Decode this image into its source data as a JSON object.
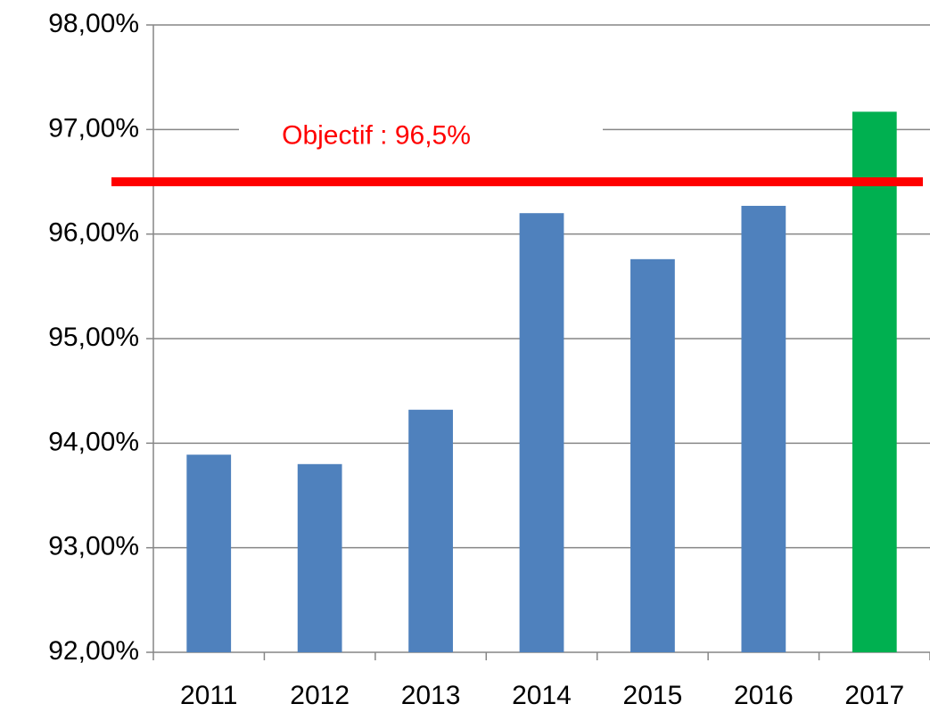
{
  "chart_data": {
    "type": "bar",
    "categories": [
      "2011",
      "2012",
      "2013",
      "2014",
      "2015",
      "2016",
      "2017"
    ],
    "values": [
      93.89,
      93.8,
      94.32,
      96.2,
      95.76,
      96.27,
      97.17
    ],
    "colors": [
      "#4f81bd",
      "#4f81bd",
      "#4f81bd",
      "#4f81bd",
      "#4f81bd",
      "#4f81bd",
      "#00b050"
    ],
    "ylim": [
      92,
      98
    ],
    "yticks": [
      {
        "value": 92,
        "label": "92,00%"
      },
      {
        "value": 93,
        "label": "93,00%"
      },
      {
        "value": 94,
        "label": "94,00%"
      },
      {
        "value": 95,
        "label": "95,00%"
      },
      {
        "value": 96,
        "label": "96,00%"
      },
      {
        "value": 97,
        "label": "97,00%"
      },
      {
        "value": 98,
        "label": "98,00%"
      }
    ],
    "grid": true,
    "target": {
      "value": 96.5,
      "label": "Objectif : 96,5%",
      "color": "#ff0000"
    }
  }
}
